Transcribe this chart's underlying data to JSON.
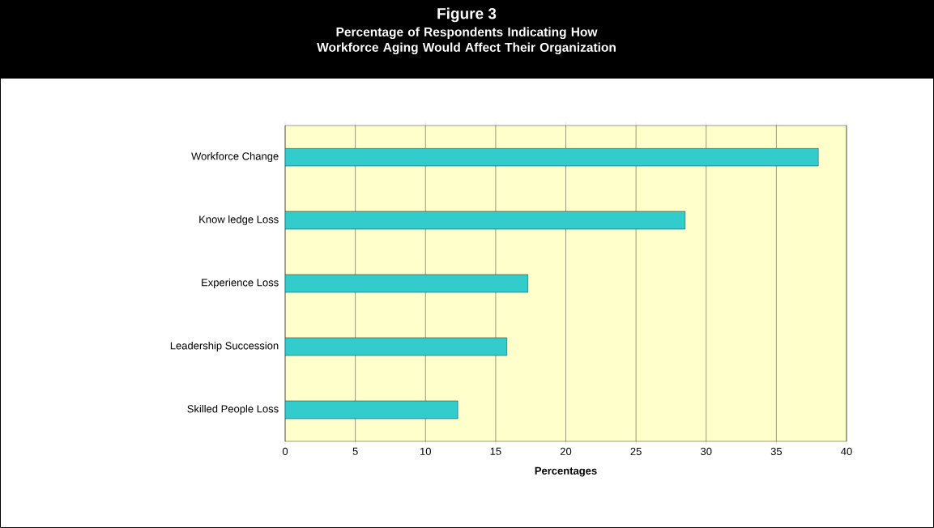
{
  "chart_data": {
    "type": "bar",
    "orientation": "horizontal",
    "title": "Figure 3",
    "subtitle": "Percentage of Respondents Indicating How Workforce Aging Would Affect Their Organization",
    "xlabel": "Percentages",
    "categories": [
      "Workforce Change",
      "Know ledge Loss",
      "Experience Loss",
      "Leadership Succession",
      "Skilled People Loss"
    ],
    "values": [
      38,
      28.5,
      17.3,
      15.8,
      12.3
    ],
    "color": "#33cccc",
    "xlim": [
      0,
      40
    ],
    "xticks": [
      0,
      5,
      10,
      15,
      20,
      25,
      30,
      35,
      40
    ],
    "grid": "x"
  }
}
